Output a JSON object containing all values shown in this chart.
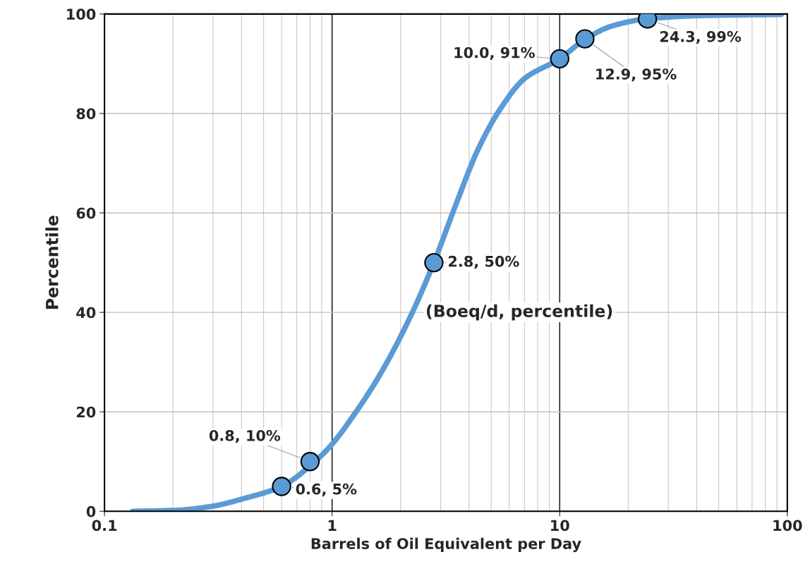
{
  "chart_data": {
    "type": "line",
    "xlabel": "Barrels of Oil Equivalent per Day",
    "ylabel": "Percentile",
    "log": "x",
    "xlim": [
      0.1,
      100
    ],
    "xticks": [
      0.1,
      1,
      10,
      100
    ],
    "ylim": [
      0,
      100
    ],
    "yticks": [
      0,
      20,
      40,
      60,
      80,
      100
    ],
    "grid": true,
    "annotations": [
      "(Boeq/d, percentile)"
    ],
    "series": [
      {
        "color": "#5b9bd5",
        "marker": "none",
        "x": [
          0.133,
          0.207,
          0.296,
          0.42,
          0.6,
          0.84,
          1.0,
          1.23,
          1.6,
          2.2,
          2.8,
          3.5,
          4.4,
          5.5,
          7.0,
          10.0,
          13.0,
          17.0,
          24.0,
          43.0,
          94.0
        ],
        "values": [
          0,
          0.2,
          1.0,
          2.7,
          5,
          10,
          13.5,
          19,
          27,
          39,
          50,
          61.7,
          73,
          81,
          87,
          91,
          95,
          97.6,
          99,
          99.7,
          99.9
        ]
      },
      {
        "type": "scatter",
        "color": "#5b9bd5",
        "marker": "circle",
        "x": [
          0.6,
          0.8,
          2.8,
          10.0,
          12.9,
          24.3
        ],
        "values": [
          5,
          10,
          50,
          91,
          95,
          99
        ],
        "value_labels": [
          "0.6, 5%",
          "0.8, 10%",
          "2.8, 50%",
          "10.0, 91%",
          "12.9, 95%",
          "24.3, 99%"
        ]
      }
    ]
  }
}
